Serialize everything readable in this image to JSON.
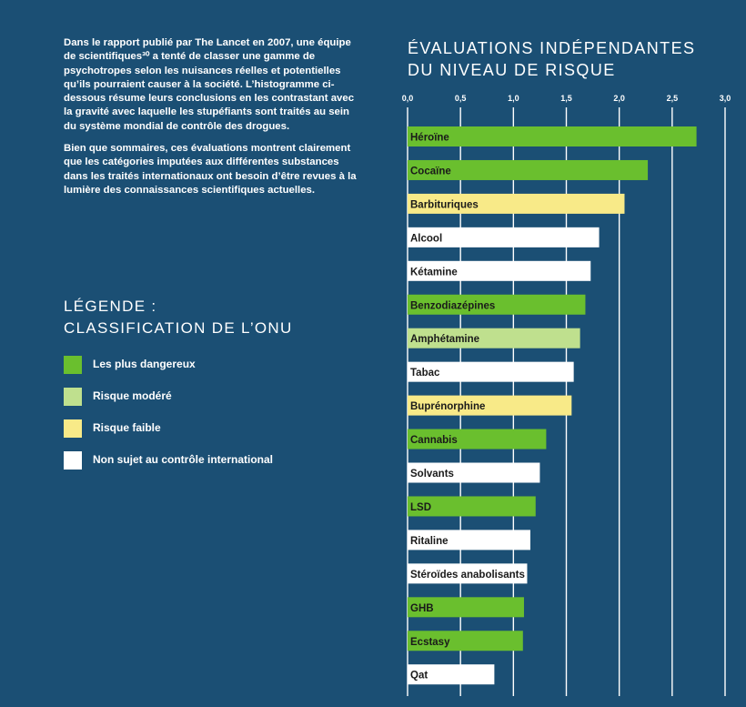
{
  "intro": {
    "paragraph1": "Dans le rapport publié par The Lancet en 2007, une équipe de scientifiques³⁰ a tenté de classer une gamme de psychotropes selon les nuisances réelles et potentielles qu’ils pourraient causer à la société. L’histogramme ci-dessous résume leurs conclusions en les contrastant avec la gravité avec laquelle les stupéfiants sont traités au sein du système mondial de contrôle des drogues.",
    "paragraph2": "Bien que sommaires, ces évaluations montrent clairement que les catégories imputées aux différentes substances dans les traités internationaux ont besoin d’être revues à la lumière des connaissances scientifiques actuelles."
  },
  "legend": {
    "title_line1": "LÉGENDE :",
    "title_line2": "CLASSIFICATION DE L’ONU",
    "items": [
      {
        "label": "Les plus dangereux",
        "color": "#6abf2e"
      },
      {
        "label": "Risque modéré",
        "color": "#bfe08e"
      },
      {
        "label": "Risque faible",
        "color": "#f8ea88"
      },
      {
        "label": "Non sujet au contrôle international",
        "color": "#ffffff"
      }
    ]
  },
  "chart_data": {
    "type": "bar",
    "orientation": "horizontal",
    "title_line1": "ÉVALUATIONS INDÉPENDANTES",
    "title_line2": "DU NIVEAU DE RISQUE",
    "xlim": [
      0,
      3
    ],
    "ticks": [
      "0,0",
      "0,5",
      "1,0",
      "1,5",
      "2,0",
      "2,5",
      "3,0"
    ],
    "tick_values": [
      0,
      0.5,
      1,
      1.5,
      2,
      2.5,
      3
    ],
    "grid": true,
    "legend_position": "left",
    "categories": [
      "Héroïne",
      "Cocaïne",
      "Barbituriques",
      "Alcool",
      "Kétamine",
      "Benzodiazépines",
      "Amphétamine",
      "Tabac",
      "Buprénorphine",
      "Cannabis",
      "Solvants",
      "LSD",
      "Ritaline",
      "Stéroïdes anabolisants",
      "GHB",
      "Ecstasy",
      "Qat"
    ],
    "values": [
      2.73,
      2.27,
      2.05,
      1.81,
      1.73,
      1.68,
      1.63,
      1.57,
      1.55,
      1.31,
      1.25,
      1.21,
      1.16,
      1.13,
      1.1,
      1.09,
      0.82
    ],
    "classification": [
      0,
      0,
      2,
      3,
      3,
      0,
      1,
      3,
      2,
      0,
      3,
      0,
      3,
      3,
      0,
      0,
      3
    ]
  }
}
